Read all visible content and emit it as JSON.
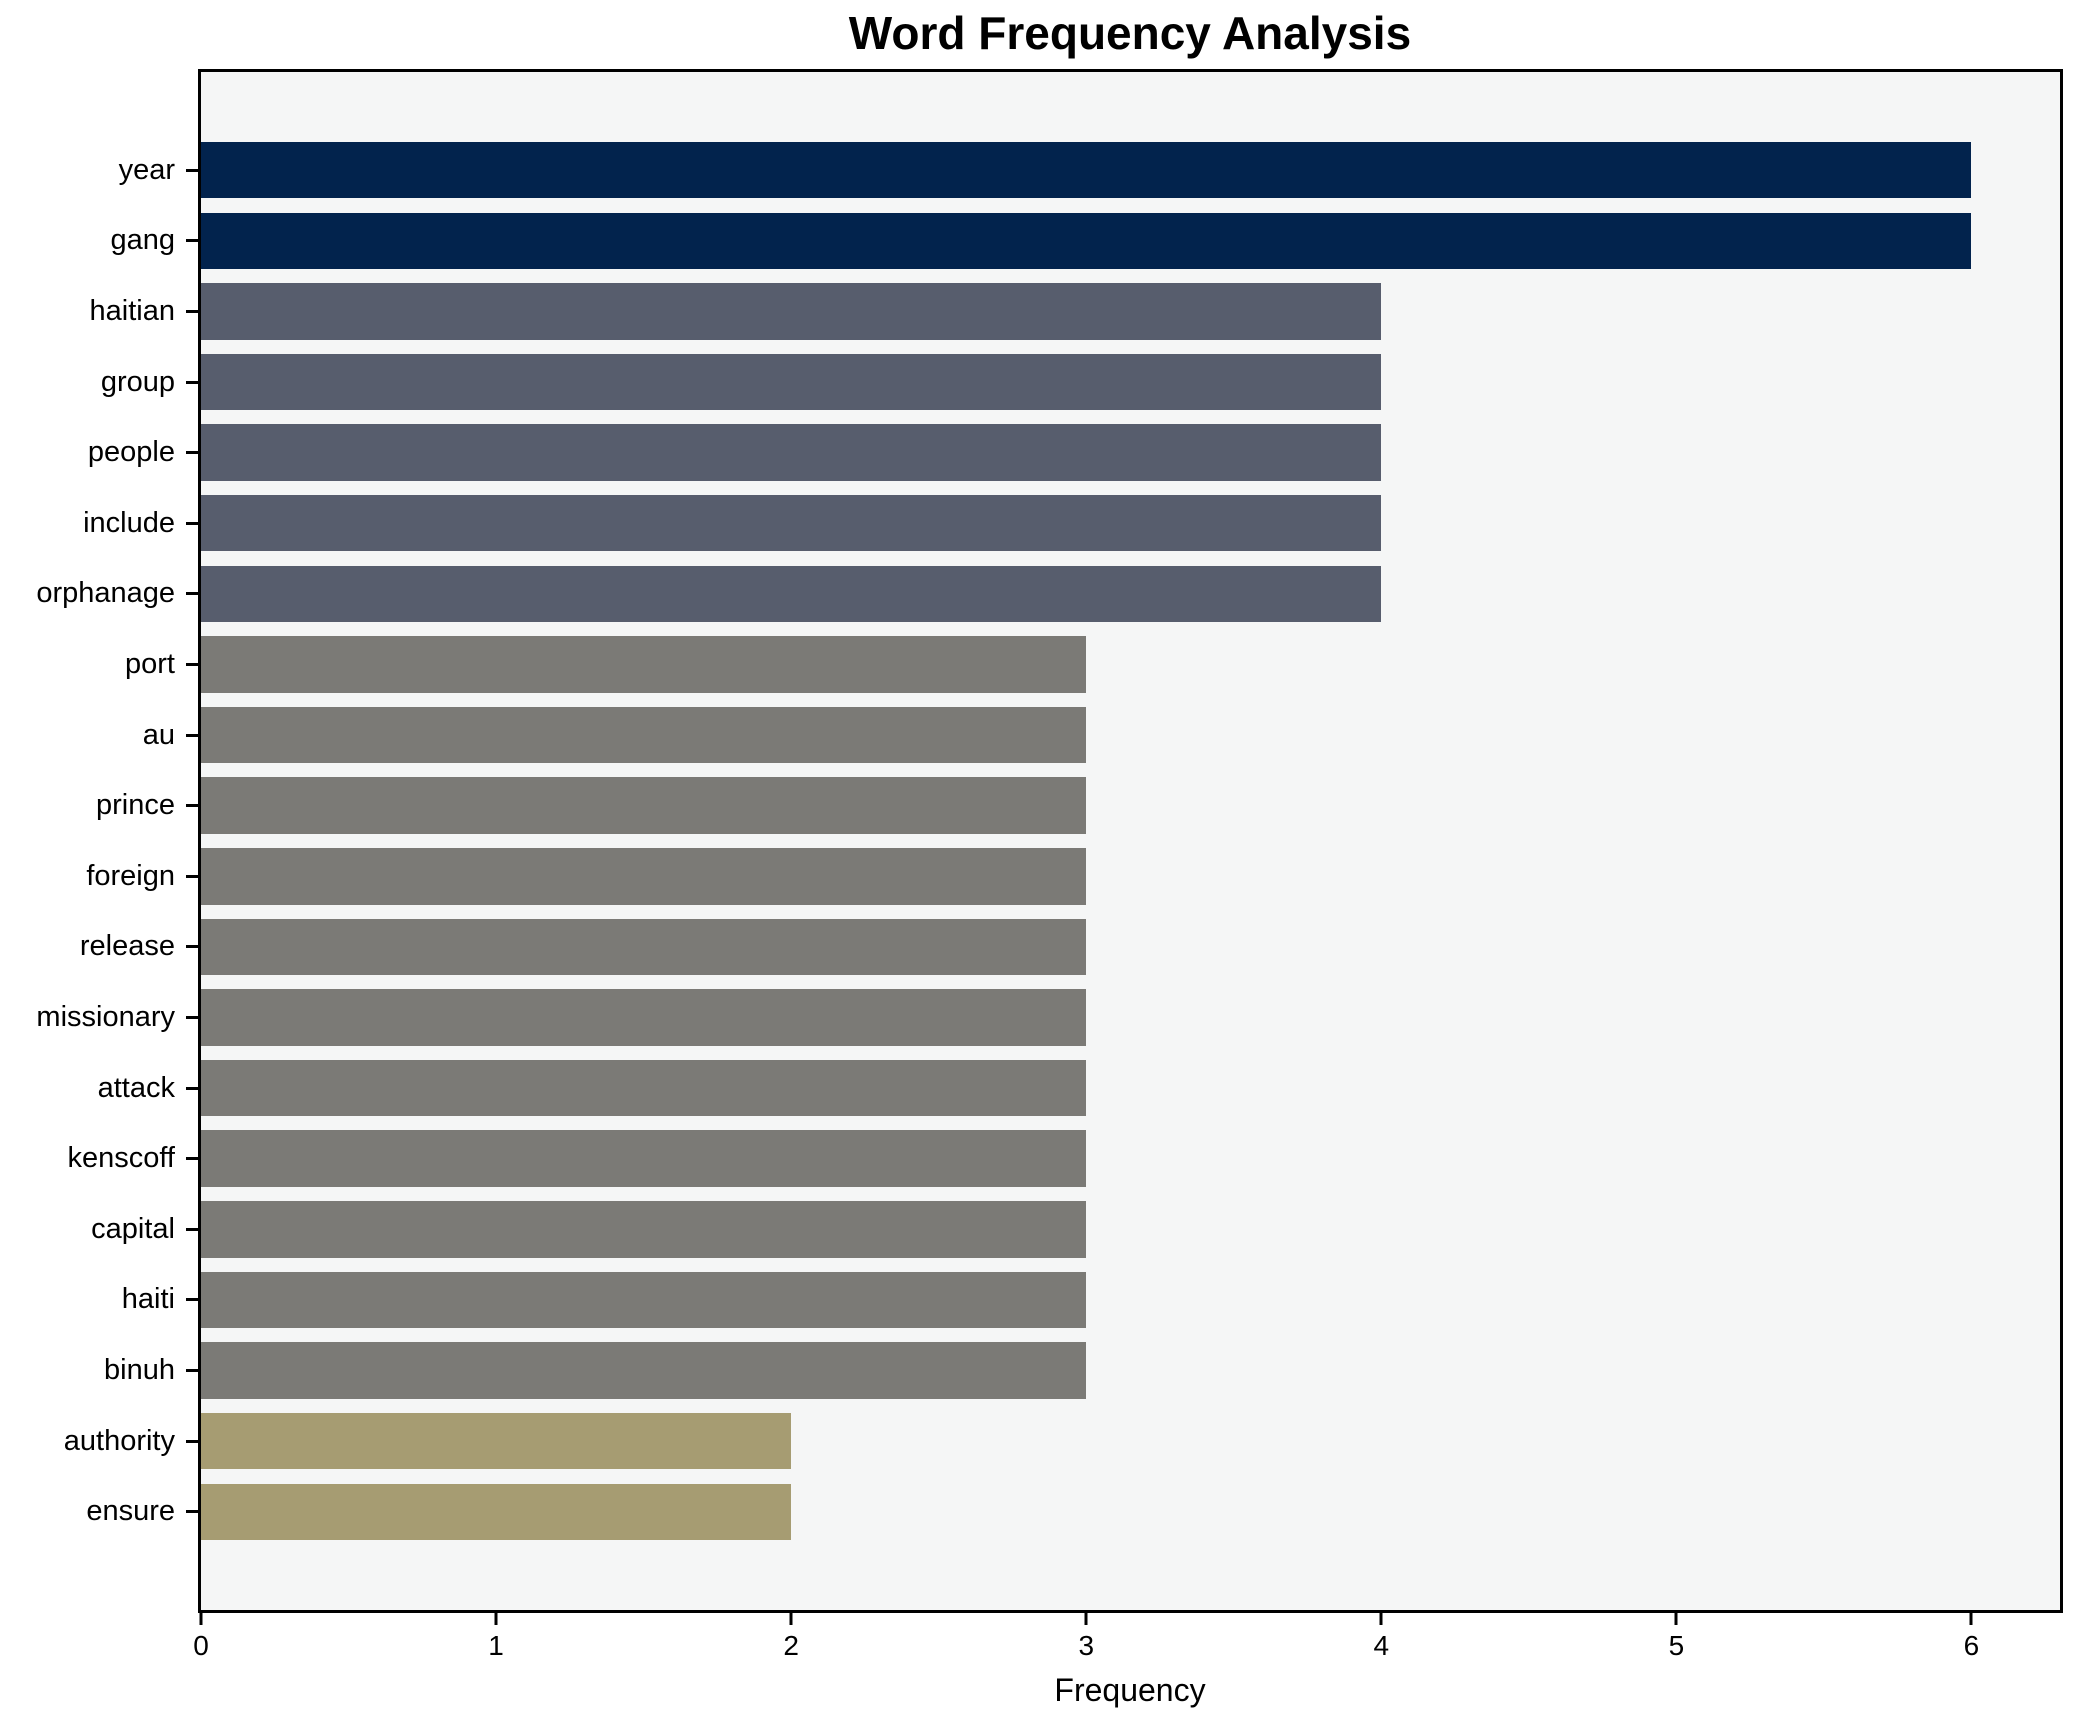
{
  "figure": {
    "title": "Word Frequency Analysis",
    "xlabel": "Frequency"
  },
  "chart_data": {
    "type": "bar",
    "orientation": "horizontal",
    "title": "Word Frequency Analysis",
    "xlabel": "Frequency",
    "ylabel": "",
    "categories": [
      "year",
      "gang",
      "haitian",
      "group",
      "people",
      "include",
      "orphanage",
      "port",
      "au",
      "prince",
      "foreign",
      "release",
      "missionary",
      "attack",
      "kenscoff",
      "capital",
      "haiti",
      "binuh",
      "authority",
      "ensure"
    ],
    "values": [
      6,
      6,
      4,
      4,
      4,
      4,
      4,
      3,
      3,
      3,
      3,
      3,
      3,
      3,
      3,
      3,
      3,
      3,
      2,
      2
    ],
    "xlim": [
      0,
      6.3
    ],
    "xticks": [
      0,
      1,
      2,
      3,
      4,
      5,
      6
    ],
    "grid": false,
    "legend": false,
    "value_colors": {
      "6": "#02234d",
      "4": "#575d6d",
      "3": "#7b7a76",
      "2": "#a69c72"
    },
    "plot_bg": "#f5f6f6",
    "figure_bg": "#ffffff",
    "spine_color": "#000000"
  }
}
